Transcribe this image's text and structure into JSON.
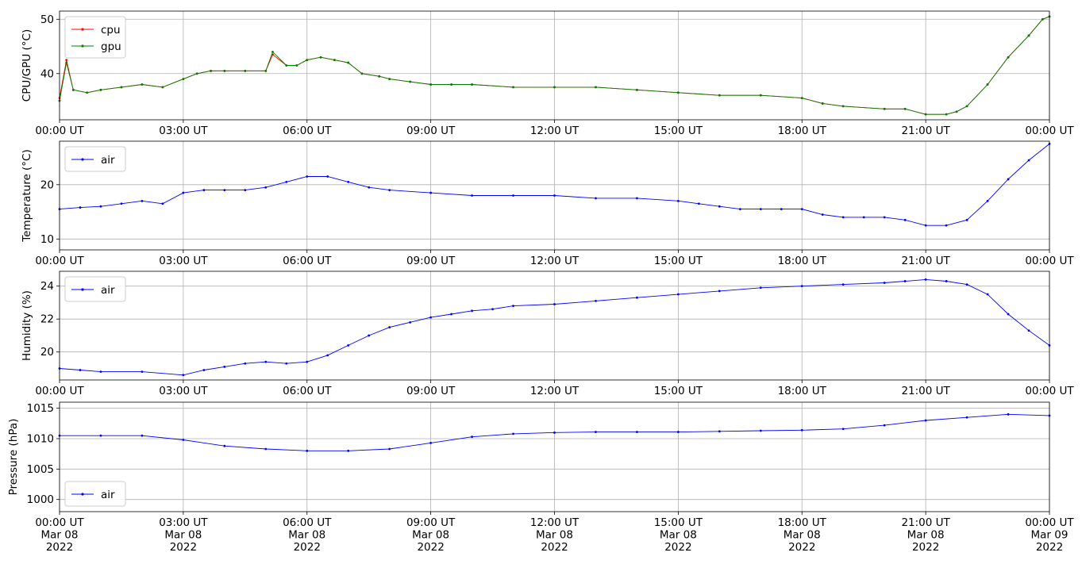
{
  "chart_data": [
    {
      "type": "line",
      "ylabel": "CPU/GPU (°C)",
      "ylim": [
        31.5,
        51.5
      ],
      "yticks": [
        40,
        50
      ],
      "xlim": [
        "2022-03-08T00:00",
        "2022-03-09T00:00"
      ],
      "xtick_labels": [
        "00:00 UT",
        "03:00 UT",
        "06:00 UT",
        "09:00 UT",
        "12:00 UT",
        "15:00 UT",
        "18:00 UT",
        "21:00 UT",
        "00:00 UT"
      ],
      "grid": true,
      "legend_position": "top-left",
      "series": [
        {
          "name": "cpu",
          "color": "#ff0000",
          "x": [
            "00:00",
            "00:10",
            "00:20",
            "00:40",
            "01:00",
            "01:30",
            "02:00",
            "02:30",
            "03:00",
            "03:20",
            "03:40",
            "04:00",
            "04:30",
            "05:00",
            "05:10",
            "05:30",
            "05:45",
            "06:00",
            "06:20",
            "06:40",
            "07:00",
            "07:20",
            "07:45",
            "08:00",
            "08:30",
            "09:00",
            "09:30",
            "10:00",
            "11:00",
            "12:00",
            "13:00",
            "14:00",
            "15:00",
            "16:00",
            "17:00",
            "18:00",
            "18:30",
            "19:00",
            "20:00",
            "20:30",
            "21:00",
            "21:30",
            "21:45",
            "22:00",
            "22:30",
            "23:00",
            "23:30",
            "23:50",
            "24:00"
          ],
          "y": [
            35.5,
            42.5,
            37,
            36.5,
            37,
            37.5,
            38,
            37.5,
            39,
            40,
            40.5,
            40.5,
            40.5,
            40.5,
            43.5,
            41.5,
            41.5,
            42.5,
            43,
            42.5,
            42,
            40,
            39.5,
            39,
            38.5,
            38,
            38,
            38,
            37.5,
            37.5,
            37.5,
            37,
            36.5,
            36,
            36,
            35.5,
            34.5,
            34,
            33.5,
            33.5,
            32.5,
            32.5,
            33,
            34,
            38,
            43,
            47,
            50,
            50.5
          ]
        },
        {
          "name": "gpu",
          "color": "#008000",
          "x": [
            "00:00",
            "00:10",
            "00:20",
            "00:40",
            "01:00",
            "01:30",
            "02:00",
            "02:30",
            "03:00",
            "03:20",
            "03:40",
            "04:00",
            "04:30",
            "05:00",
            "05:10",
            "05:30",
            "05:45",
            "06:00",
            "06:20",
            "06:40",
            "07:00",
            "07:20",
            "07:45",
            "08:00",
            "08:30",
            "09:00",
            "09:30",
            "10:00",
            "11:00",
            "12:00",
            "13:00",
            "14:00",
            "15:00",
            "16:00",
            "17:00",
            "18:00",
            "18:30",
            "19:00",
            "20:00",
            "20:30",
            "21:00",
            "21:30",
            "21:45",
            "22:00",
            "22:30",
            "23:00",
            "23:30",
            "23:50",
            "24:00"
          ],
          "y": [
            35,
            42,
            37,
            36.5,
            37,
            37.5,
            38,
            37.5,
            39,
            40,
            40.5,
            40.5,
            40.5,
            40.5,
            44,
            41.5,
            41.5,
            42.5,
            43,
            42.5,
            42,
            40,
            39.5,
            39,
            38.5,
            38,
            38,
            38,
            37.5,
            37.5,
            37.5,
            37,
            36.5,
            36,
            36,
            35.5,
            34.5,
            34,
            33.5,
            33.5,
            32.5,
            32.5,
            33,
            34,
            38,
            43,
            47,
            50,
            50.5
          ]
        }
      ]
    },
    {
      "type": "line",
      "ylabel": "Temperature (°C)",
      "ylim": [
        8,
        28
      ],
      "yticks": [
        10,
        20
      ],
      "xlim": [
        "2022-03-08T00:00",
        "2022-03-09T00:00"
      ],
      "xtick_labels": [
        "00:00 UT",
        "03:00 UT",
        "06:00 UT",
        "09:00 UT",
        "12:00 UT",
        "15:00 UT",
        "18:00 UT",
        "21:00 UT",
        "00:00 UT"
      ],
      "grid": true,
      "legend_position": "top-left",
      "series": [
        {
          "name": "air",
          "color": "#0000ff",
          "x": [
            "00:00",
            "00:30",
            "01:00",
            "01:30",
            "02:00",
            "02:30",
            "03:00",
            "03:30",
            "04:00",
            "04:30",
            "05:00",
            "05:30",
            "06:00",
            "06:30",
            "07:00",
            "07:30",
            "08:00",
            "09:00",
            "10:00",
            "11:00",
            "12:00",
            "13:00",
            "14:00",
            "15:00",
            "15:30",
            "16:00",
            "16:30",
            "17:00",
            "17:30",
            "18:00",
            "18:30",
            "19:00",
            "19:30",
            "20:00",
            "20:30",
            "21:00",
            "21:30",
            "22:00",
            "22:30",
            "23:00",
            "23:30",
            "24:00"
          ],
          "y": [
            15.5,
            15.8,
            16,
            16.5,
            17,
            16.5,
            18.5,
            19,
            19,
            19,
            19.5,
            20.5,
            21.5,
            21.5,
            20.5,
            19.5,
            19,
            18.5,
            18,
            18,
            18,
            17.5,
            17.5,
            17,
            16.5,
            16,
            15.5,
            15.5,
            15.5,
            15.5,
            14.5,
            14,
            14,
            14,
            13.5,
            12.5,
            12.5,
            13.5,
            17,
            21,
            24.5,
            27.5
          ]
        }
      ]
    },
    {
      "type": "line",
      "ylabel": "Humidity (%)",
      "ylim": [
        18.3,
        24.9
      ],
      "yticks": [
        20,
        22,
        24
      ],
      "xlim": [
        "2022-03-08T00:00",
        "2022-03-09T00:00"
      ],
      "xtick_labels": [
        "00:00 UT",
        "03:00 UT",
        "06:00 UT",
        "09:00 UT",
        "12:00 UT",
        "15:00 UT",
        "18:00 UT",
        "21:00 UT",
        "00:00 UT"
      ],
      "grid": true,
      "legend_position": "top-left",
      "series": [
        {
          "name": "air",
          "color": "#0000ff",
          "x": [
            "00:00",
            "00:30",
            "01:00",
            "02:00",
            "03:00",
            "03:30",
            "04:00",
            "04:30",
            "05:00",
            "05:30",
            "06:00",
            "06:30",
            "07:00",
            "07:30",
            "08:00",
            "08:30",
            "09:00",
            "09:30",
            "10:00",
            "10:30",
            "11:00",
            "12:00",
            "13:00",
            "14:00",
            "15:00",
            "16:00",
            "17:00",
            "18:00",
            "19:00",
            "20:00",
            "20:30",
            "21:00",
            "21:30",
            "22:00",
            "22:30",
            "23:00",
            "23:30",
            "24:00"
          ],
          "y": [
            19,
            18.9,
            18.8,
            18.8,
            18.6,
            18.9,
            19.1,
            19.3,
            19.4,
            19.3,
            19.4,
            19.8,
            20.4,
            21,
            21.5,
            21.8,
            22.1,
            22.3,
            22.5,
            22.6,
            22.8,
            22.9,
            23.1,
            23.3,
            23.5,
            23.7,
            23.9,
            24,
            24.1,
            24.2,
            24.3,
            24.4,
            24.3,
            24.1,
            23.5,
            22.3,
            21.3,
            20.4
          ]
        }
      ]
    },
    {
      "type": "line",
      "ylabel": "Pressure (hPa)",
      "ylim": [
        998,
        1016
      ],
      "yticks": [
        1000,
        1005,
        1010,
        1015
      ],
      "xlim": [
        "2022-03-08T00:00",
        "2022-03-09T00:00"
      ],
      "xtick_labels": [
        "00:00 UT\nMar 08\n2022",
        "03:00 UT\nMar 08\n2022",
        "06:00 UT\nMar 08\n2022",
        "09:00 UT\nMar 08\n2022",
        "12:00 UT\nMar 08\n2022",
        "15:00 UT\nMar 08\n2022",
        "18:00 UT\nMar 08\n2022",
        "21:00 UT\nMar 08\n2022",
        "00:00 UT\nMar 09\n2022"
      ],
      "grid": true,
      "legend_position": "lower-left",
      "series": [
        {
          "name": "air",
          "color": "#0000ff",
          "x": [
            "00:00",
            "01:00",
            "02:00",
            "03:00",
            "04:00",
            "05:00",
            "06:00",
            "07:00",
            "08:00",
            "09:00",
            "10:00",
            "11:00",
            "12:00",
            "13:00",
            "14:00",
            "15:00",
            "16:00",
            "17:00",
            "18:00",
            "19:00",
            "20:00",
            "21:00",
            "22:00",
            "23:00",
            "24:00"
          ],
          "y": [
            1010.5,
            1010.5,
            1010.5,
            1009.8,
            1008.8,
            1008.3,
            1008,
            1008,
            1008.3,
            1009.3,
            1010.3,
            1010.8,
            1011,
            1011.1,
            1011.1,
            1011.1,
            1011.2,
            1011.3,
            1011.4,
            1011.6,
            1012.2,
            1013,
            1013.5,
            1014,
            1013.8
          ]
        }
      ]
    }
  ]
}
